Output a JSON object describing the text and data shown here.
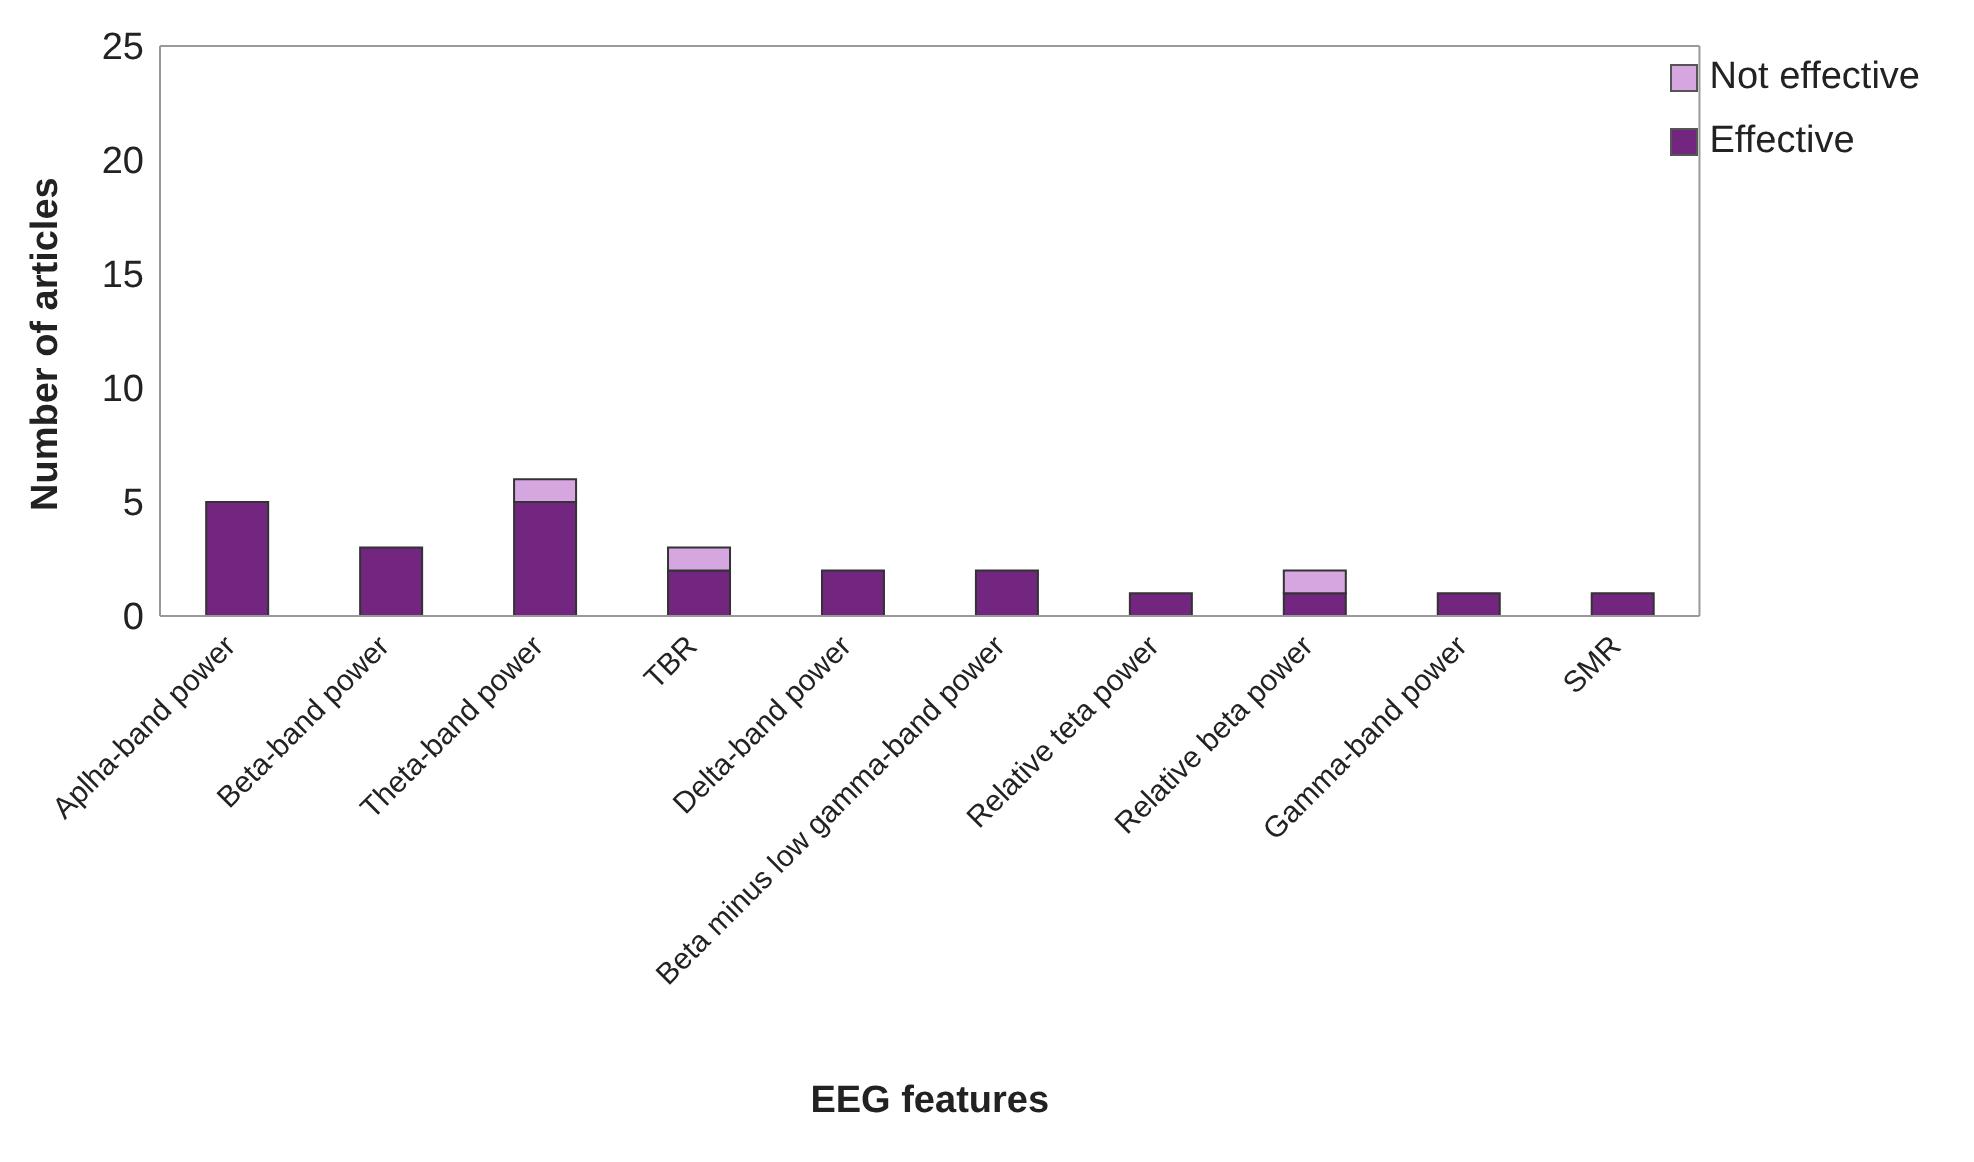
{
  "chart_data": {
    "type": "bar",
    "stacked": true,
    "xlabel": "EEG features",
    "ylabel": "Number of articles",
    "categories": [
      "Aplha-band power",
      "Beta-band power",
      "Theta-band power",
      "TBR",
      "Delta-band power",
      "Beta minus low gamma-band power",
      "Relative teta power",
      "Relative beta power",
      "Gamma-band power",
      "SMR"
    ],
    "series": [
      {
        "name": "Effective",
        "color": "#72267f",
        "values": [
          5,
          3,
          5,
          2,
          2,
          2,
          1,
          1,
          1,
          1
        ]
      },
      {
        "name": "Not effective",
        "color": "#d5a6e0",
        "values": [
          0,
          0,
          1,
          1,
          0,
          0,
          0,
          1,
          0,
          0
        ]
      }
    ],
    "ylim": [
      0,
      25
    ],
    "yticks": [
      0,
      5,
      10,
      15,
      20,
      25
    ],
    "grid": false,
    "legend": "top right"
  }
}
